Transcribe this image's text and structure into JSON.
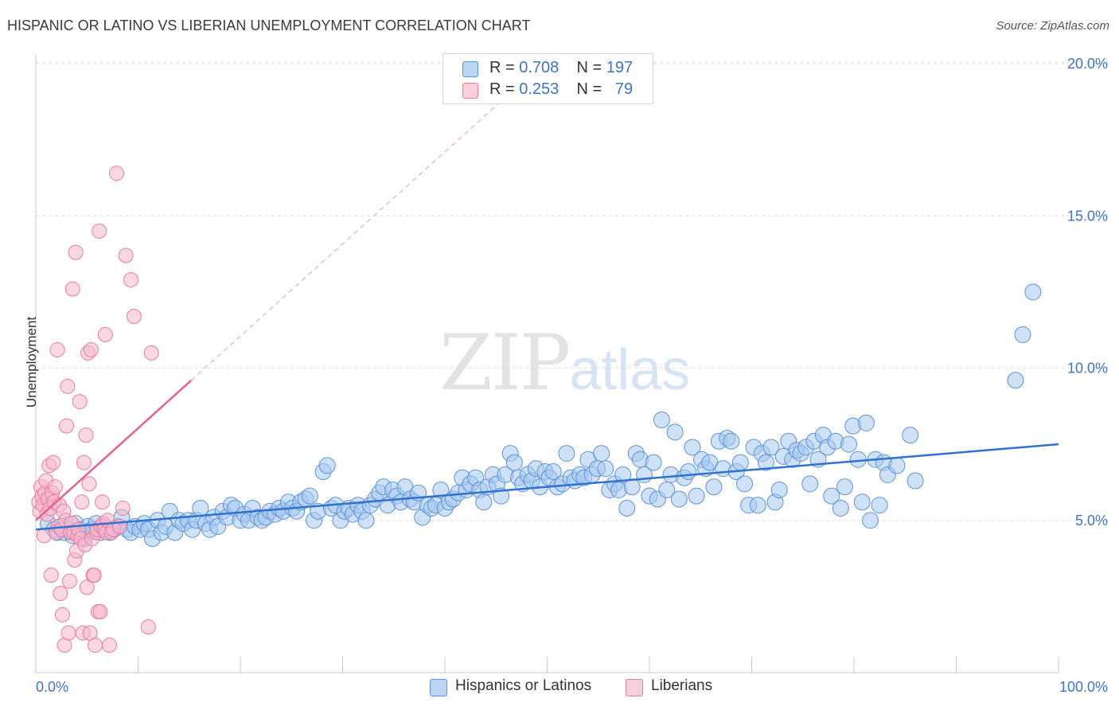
{
  "header": {
    "title": "HISPANIC OR LATINO VS LIBERIAN UNEMPLOYMENT CORRELATION CHART",
    "source": "Source: ZipAtlas.com"
  },
  "watermark": {
    "zip": "ZIP",
    "atlas": "atlas"
  },
  "legend": {
    "rows": [
      {
        "r_label": "R = ",
        "r_value": "0.708",
        "n_label": "N = ",
        "n_value": "197",
        "color": "#a8c8f0"
      },
      {
        "r_label": "R = ",
        "r_value": "0.253",
        "n_label": "N = ",
        "n_value": "79",
        "color": "#f5b8cc"
      }
    ]
  },
  "bottom_legend": [
    {
      "label": "Hispanics or Latinos",
      "color": "#a8c8f0"
    },
    {
      "label": "Liberians",
      "color": "#f5b8cc"
    }
  ],
  "chart_data": {
    "type": "scatter",
    "title": "HISPANIC OR LATINO VS LIBERIAN UNEMPLOYMENT CORRELATION CHART",
    "xlabel": "",
    "ylabel": "Unemployment",
    "xlim": [
      0,
      100
    ],
    "ylim": [
      0,
      20.5
    ],
    "x_tick_labels": [
      "0.0%",
      "100.0%"
    ],
    "y_ticks": [
      5,
      10,
      15,
      20
    ],
    "y_tick_labels": [
      "5.0%",
      "10.0%",
      "15.0%",
      "20.0%"
    ],
    "grid": true,
    "legend_position": "top-center",
    "series": [
      {
        "name": "Hispanics or Latinos",
        "color": "#5b93d8",
        "fill": "#a8c8f0",
        "R": 0.708,
        "N": 197,
        "trend": {
          "x": [
            0,
            100
          ],
          "y": [
            4.7,
            7.5
          ]
        },
        "points": [
          [
            1.2,
            4.9
          ],
          [
            1.8,
            4.7
          ],
          [
            2.1,
            4.6
          ],
          [
            2.5,
            4.8
          ],
          [
            2.8,
            4.6
          ],
          [
            3.2,
            4.7
          ],
          [
            3.6,
            4.5
          ],
          [
            3.9,
            4.9
          ],
          [
            4.3,
            4.7
          ],
          [
            4.7,
            4.4
          ],
          [
            5.1,
            4.8
          ],
          [
            5.5,
            4.7
          ],
          [
            5.9,
            4.9
          ],
          [
            6.3,
            4.6
          ],
          [
            6.7,
            4.8
          ],
          [
            7.2,
            4.6
          ],
          [
            7.6,
            4.7
          ],
          [
            8.0,
            4.8
          ],
          [
            8.4,
            5.1
          ],
          [
            8.9,
            4.7
          ],
          [
            9.3,
            4.6
          ],
          [
            9.7,
            4.8
          ],
          [
            10.2,
            4.7
          ],
          [
            10.6,
            4.9
          ],
          [
            11.0,
            4.7
          ],
          [
            11.4,
            4.4
          ],
          [
            11.9,
            5.0
          ],
          [
            12.3,
            4.6
          ],
          [
            12.7,
            4.8
          ],
          [
            13.1,
            5.3
          ],
          [
            13.6,
            4.6
          ],
          [
            14.0,
            5.0
          ],
          [
            14.4,
            4.9
          ],
          [
            14.9,
            5.0
          ],
          [
            15.3,
            4.7
          ],
          [
            15.7,
            5.0
          ],
          [
            16.1,
            5.4
          ],
          [
            16.6,
            4.9
          ],
          [
            17.0,
            4.7
          ],
          [
            17.4,
            5.1
          ],
          [
            17.8,
            4.8
          ],
          [
            18.3,
            5.3
          ],
          [
            18.7,
            5.1
          ],
          [
            19.1,
            5.5
          ],
          [
            19.5,
            5.4
          ],
          [
            20.0,
            5.0
          ],
          [
            20.4,
            5.2
          ],
          [
            20.8,
            5.0
          ],
          [
            21.2,
            5.4
          ],
          [
            21.7,
            5.1
          ],
          [
            22.1,
            5.0
          ],
          [
            22.5,
            5.1
          ],
          [
            22.9,
            5.3
          ],
          [
            23.4,
            5.2
          ],
          [
            23.8,
            5.4
          ],
          [
            24.2,
            5.3
          ],
          [
            24.7,
            5.6
          ],
          [
            25.1,
            5.4
          ],
          [
            25.5,
            5.3
          ],
          [
            25.9,
            5.6
          ],
          [
            26.4,
            5.7
          ],
          [
            26.8,
            5.8
          ],
          [
            27.2,
            5.0
          ],
          [
            27.6,
            5.3
          ],
          [
            28.1,
            6.6
          ],
          [
            28.5,
            6.8
          ],
          [
            28.9,
            5.4
          ],
          [
            29.3,
            5.5
          ],
          [
            29.8,
            5.0
          ],
          [
            30.2,
            5.3
          ],
          [
            30.6,
            5.4
          ],
          [
            31.0,
            5.2
          ],
          [
            31.5,
            5.5
          ],
          [
            31.9,
            5.3
          ],
          [
            32.3,
            5.0
          ],
          [
            32.7,
            5.5
          ],
          [
            33.2,
            5.7
          ],
          [
            33.6,
            5.9
          ],
          [
            34.0,
            6.1
          ],
          [
            34.4,
            5.5
          ],
          [
            34.9,
            6.0
          ],
          [
            35.3,
            5.8
          ],
          [
            35.7,
            5.6
          ],
          [
            36.1,
            6.1
          ],
          [
            36.6,
            5.7
          ],
          [
            37.0,
            5.6
          ],
          [
            37.4,
            5.9
          ],
          [
            37.8,
            5.1
          ],
          [
            38.3,
            5.5
          ],
          [
            38.7,
            5.4
          ],
          [
            39.1,
            5.5
          ],
          [
            39.6,
            6.0
          ],
          [
            40.0,
            5.4
          ],
          [
            40.4,
            5.6
          ],
          [
            40.8,
            5.7
          ],
          [
            41.3,
            5.9
          ],
          [
            41.7,
            6.4
          ],
          [
            42.1,
            6.0
          ],
          [
            42.5,
            6.2
          ],
          [
            43.0,
            6.4
          ],
          [
            43.4,
            6.0
          ],
          [
            43.8,
            5.6
          ],
          [
            44.2,
            6.1
          ],
          [
            44.7,
            6.5
          ],
          [
            45.1,
            6.2
          ],
          [
            45.5,
            5.8
          ],
          [
            45.9,
            6.5
          ],
          [
            46.4,
            7.2
          ],
          [
            46.8,
            6.9
          ],
          [
            47.2,
            6.4
          ],
          [
            47.6,
            6.2
          ],
          [
            48.1,
            6.5
          ],
          [
            48.5,
            6.3
          ],
          [
            48.9,
            6.7
          ],
          [
            49.3,
            6.1
          ],
          [
            49.8,
            6.6
          ],
          [
            50.2,
            6.4
          ],
          [
            50.6,
            6.6
          ],
          [
            51.0,
            6.1
          ],
          [
            51.5,
            6.2
          ],
          [
            51.9,
            7.2
          ],
          [
            52.3,
            6.4
          ],
          [
            52.7,
            6.3
          ],
          [
            53.2,
            6.5
          ],
          [
            53.6,
            6.4
          ],
          [
            54.0,
            7.0
          ],
          [
            54.4,
            6.5
          ],
          [
            54.9,
            6.7
          ],
          [
            55.3,
            7.2
          ],
          [
            55.7,
            6.7
          ],
          [
            56.1,
            6.0
          ],
          [
            56.6,
            6.2
          ],
          [
            57.0,
            6.0
          ],
          [
            57.4,
            6.5
          ],
          [
            57.8,
            5.4
          ],
          [
            58.3,
            6.1
          ],
          [
            58.7,
            7.2
          ],
          [
            59.1,
            7.0
          ],
          [
            59.5,
            6.5
          ],
          [
            60.0,
            5.8
          ],
          [
            60.4,
            6.9
          ],
          [
            60.8,
            5.7
          ],
          [
            61.2,
            8.3
          ],
          [
            61.7,
            6.0
          ],
          [
            62.1,
            6.5
          ],
          [
            62.5,
            7.9
          ],
          [
            62.9,
            5.7
          ],
          [
            63.4,
            6.4
          ],
          [
            63.8,
            6.6
          ],
          [
            64.2,
            7.4
          ],
          [
            64.6,
            5.8
          ],
          [
            65.1,
            7.0
          ],
          [
            65.5,
            6.7
          ],
          [
            65.9,
            6.9
          ],
          [
            66.3,
            6.1
          ],
          [
            66.8,
            7.6
          ],
          [
            67.2,
            6.7
          ],
          [
            67.6,
            7.7
          ],
          [
            68.0,
            7.6
          ],
          [
            68.5,
            6.6
          ],
          [
            68.9,
            6.9
          ],
          [
            69.3,
            6.2
          ],
          [
            69.7,
            5.5
          ],
          [
            70.2,
            7.4
          ],
          [
            70.6,
            5.5
          ],
          [
            71.0,
            7.2
          ],
          [
            71.4,
            6.9
          ],
          [
            71.9,
            7.4
          ],
          [
            72.3,
            5.6
          ],
          [
            72.7,
            6.0
          ],
          [
            73.1,
            7.1
          ],
          [
            73.6,
            7.6
          ],
          [
            74.0,
            7.0
          ],
          [
            74.4,
            7.3
          ],
          [
            74.8,
            7.2
          ],
          [
            75.3,
            7.4
          ],
          [
            75.7,
            6.2
          ],
          [
            76.1,
            7.6
          ],
          [
            76.5,
            7.0
          ],
          [
            77.0,
            7.8
          ],
          [
            77.4,
            7.4
          ],
          [
            77.8,
            5.8
          ],
          [
            78.2,
            7.6
          ],
          [
            78.7,
            5.4
          ],
          [
            79.1,
            6.1
          ],
          [
            79.5,
            7.5
          ],
          [
            79.9,
            8.1
          ],
          [
            80.4,
            7.0
          ],
          [
            80.8,
            5.6
          ],
          [
            81.2,
            8.2
          ],
          [
            81.6,
            5.0
          ],
          [
            82.1,
            7.0
          ],
          [
            82.5,
            5.5
          ],
          [
            82.9,
            6.9
          ],
          [
            83.3,
            6.5
          ],
          [
            85.5,
            7.8
          ],
          [
            84.2,
            6.8
          ],
          [
            86.0,
            6.3
          ],
          [
            97.5,
            12.5
          ],
          [
            96.5,
            11.1
          ],
          [
            95.8,
            9.6
          ]
        ]
      },
      {
        "name": "Liberians",
        "color": "#ec7aa0",
        "fill": "#f5b8cc",
        "R": 0.253,
        "N": 79,
        "trend": {
          "x": [
            0,
            15.2
          ],
          "y": [
            5.0,
            9.6
          ]
        },
        "points": [
          [
            0.3,
            5.6
          ],
          [
            0.4,
            5.3
          ],
          [
            0.5,
            6.1
          ],
          [
            0.6,
            5.8
          ],
          [
            0.7,
            5.5
          ],
          [
            0.8,
            4.5
          ],
          [
            0.9,
            5.9
          ],
          [
            1.0,
            6.3
          ],
          [
            1.1,
            5.2
          ],
          [
            1.2,
            5.7
          ],
          [
            1.3,
            6.8
          ],
          [
            1.4,
            5.4
          ],
          [
            1.5,
            3.2
          ],
          [
            1.6,
            5.9
          ],
          [
            1.7,
            6.9
          ],
          [
            1.8,
            5.6
          ],
          [
            1.9,
            6.1
          ],
          [
            2.0,
            4.6
          ],
          [
            2.1,
            10.6
          ],
          [
            2.2,
            4.8
          ],
          [
            2.3,
            5.5
          ],
          [
            2.4,
            2.6
          ],
          [
            2.5,
            4.7
          ],
          [
            2.6,
            1.9
          ],
          [
            2.7,
            5.3
          ],
          [
            2.8,
            0.9
          ],
          [
            2.9,
            5.0
          ],
          [
            3.0,
            8.1
          ],
          [
            3.1,
            9.4
          ],
          [
            3.2,
            1.3
          ],
          [
            3.3,
            3.0
          ],
          [
            3.4,
            4.6
          ],
          [
            3.5,
            4.9
          ],
          [
            3.6,
            12.6
          ],
          [
            3.7,
            4.6
          ],
          [
            3.8,
            3.7
          ],
          [
            3.9,
            13.8
          ],
          [
            4.0,
            4.0
          ],
          [
            4.1,
            4.5
          ],
          [
            4.2,
            4.7
          ],
          [
            4.3,
            8.9
          ],
          [
            4.4,
            4.4
          ],
          [
            4.5,
            5.6
          ],
          [
            4.6,
            1.3
          ],
          [
            4.7,
            6.9
          ],
          [
            4.8,
            4.2
          ],
          [
            4.9,
            7.8
          ],
          [
            5.0,
            2.8
          ],
          [
            5.1,
            10.5
          ],
          [
            5.2,
            6.2
          ],
          [
            5.3,
            1.3
          ],
          [
            5.4,
            10.6
          ],
          [
            5.5,
            4.4
          ],
          [
            5.6,
            3.2
          ],
          [
            5.7,
            3.2
          ],
          [
            5.8,
            0.9
          ],
          [
            5.9,
            4.6
          ],
          [
            6.0,
            4.7
          ],
          [
            6.1,
            2.0
          ],
          [
            6.2,
            14.5
          ],
          [
            6.3,
            2.0
          ],
          [
            6.4,
            4.8
          ],
          [
            6.5,
            5.6
          ],
          [
            6.6,
            4.9
          ],
          [
            6.7,
            4.7
          ],
          [
            6.8,
            11.1
          ],
          [
            6.9,
            4.6
          ],
          [
            7.0,
            5.0
          ],
          [
            7.2,
            0.9
          ],
          [
            7.4,
            4.6
          ],
          [
            7.6,
            4.7
          ],
          [
            7.9,
            16.4
          ],
          [
            8.2,
            4.8
          ],
          [
            8.5,
            5.4
          ],
          [
            8.8,
            13.7
          ],
          [
            9.3,
            12.9
          ],
          [
            9.6,
            11.7
          ],
          [
            11.0,
            1.5
          ],
          [
            11.3,
            10.5
          ]
        ]
      }
    ]
  }
}
